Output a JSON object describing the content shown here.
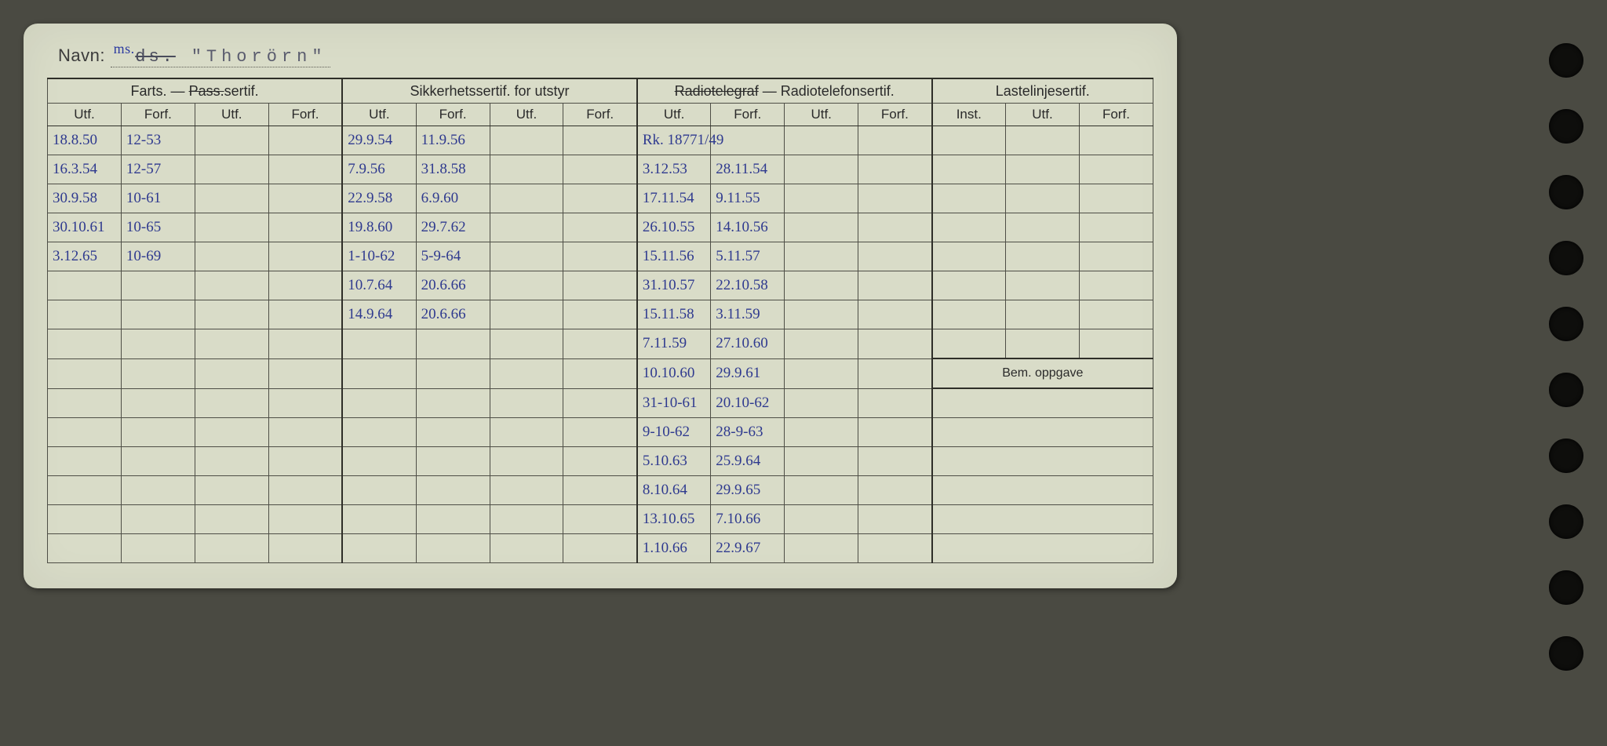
{
  "header": {
    "navn_label": "Navn:",
    "ms": "ms.",
    "ds": "ds.",
    "ship": "\"Thorörn\""
  },
  "groups": {
    "farts": {
      "title": "Farts. —",
      "title_strike": "Pass.",
      "title_tail": "sertif.",
      "sub": [
        "Utf.",
        "Forf.",
        "Utf.",
        "Forf."
      ]
    },
    "sikker": {
      "title": "Sikkerhetssertif. for utstyr",
      "sub": [
        "Utf.",
        "Forf.",
        "Utf.",
        "Forf."
      ]
    },
    "radio": {
      "title_strike": "Radiotelegraf",
      "title_tail": " — Radiotelefonsertif.",
      "sub": [
        "Utf.",
        "Forf.",
        "Utf.",
        "Forf."
      ]
    },
    "laste": {
      "title": "Lastelinjesertif.",
      "sub": [
        "Inst.",
        "Utf.",
        "Forf."
      ]
    }
  },
  "bem_label": "Bem. oppgave",
  "rows": [
    {
      "f_utf": "18.8.50",
      "f_forf": "12-53",
      "s_utf": "29.9.54",
      "s_forf": "11.9.56",
      "r_utf": "Rk. 18771/49",
      "r_forf": ""
    },
    {
      "f_utf": "16.3.54",
      "f_forf": "12-57",
      "s_utf": "7.9.56",
      "s_forf": "31.8.58",
      "r_utf": "3.12.53",
      "r_forf": "28.11.54"
    },
    {
      "f_utf": "30.9.58",
      "f_forf": "10-61",
      "s_utf": "22.9.58",
      "s_forf": "6.9.60",
      "r_utf": "17.11.54",
      "r_forf": "9.11.55"
    },
    {
      "f_utf": "30.10.61",
      "f_forf": "10-65",
      "s_utf": "19.8.60",
      "s_forf": "29.7.62",
      "r_utf": "26.10.55",
      "r_forf": "14.10.56"
    },
    {
      "f_utf": "3.12.65",
      "f_forf": "10-69",
      "s_utf": "1-10-62",
      "s_forf": "5-9-64",
      "r_utf": "15.11.56",
      "r_forf": "5.11.57"
    },
    {
      "s_utf": "10.7.64",
      "s_forf": "20.6.66",
      "r_utf": "31.10.57",
      "r_forf": "22.10.58"
    },
    {
      "s_utf": "14.9.64",
      "s_forf": "20.6.66",
      "r_utf": "15.11.58",
      "r_forf": "3.11.59"
    },
    {
      "r_utf": "7.11.59",
      "r_forf": "27.10.60",
      "bem_divider_top": true
    },
    {
      "r_utf": "10.10.60",
      "r_forf": "29.9.61",
      "show_bem": true
    },
    {
      "r_utf": "31-10-61",
      "r_forf": "20.10-62"
    },
    {
      "r_utf": "9-10-62",
      "r_forf": "28-9-63"
    },
    {
      "r_utf": "5.10.63",
      "r_forf": "25.9.64"
    },
    {
      "r_utf": "8.10.64",
      "r_forf": "29.9.65"
    },
    {
      "r_utf": "13.10.65",
      "r_forf": "7.10.66"
    },
    {
      "r_utf": "1.10.66",
      "r_forf": "22.9.67"
    }
  ],
  "colors": {
    "card_bg": "#d9dcc8",
    "page_bg": "#4a4a42",
    "rule": "#4e4e46",
    "ink_blue": "#2f3a8f"
  }
}
